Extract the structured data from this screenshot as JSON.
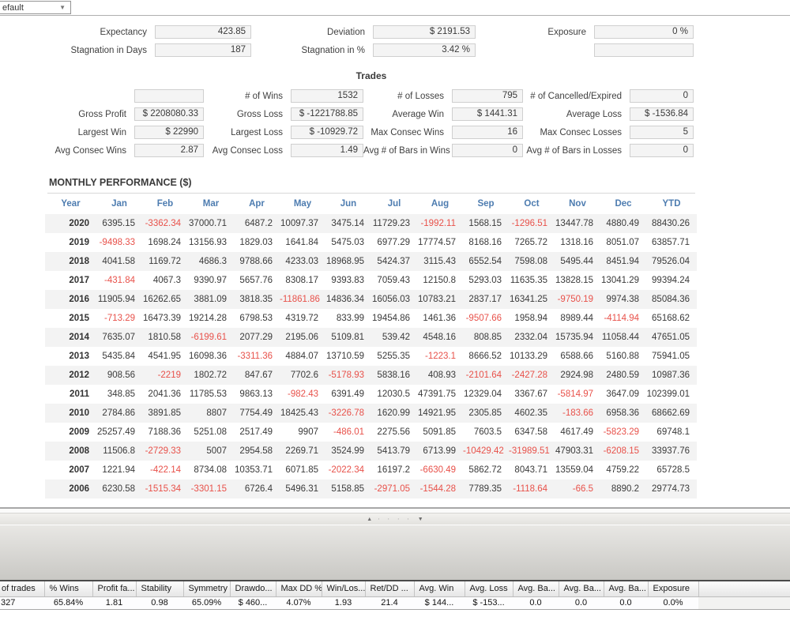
{
  "colors": {
    "accent_blue": "#4d7cb0",
    "negative_red": "#e8514a"
  },
  "toolbar": {
    "preset_value": "efault",
    "dropdown_icon": "▼"
  },
  "stats": {
    "rows": [
      [
        {
          "label": "Expectancy",
          "value": "423.85"
        },
        {
          "label": "Deviation",
          "value": "$ 2191.53"
        },
        {
          "label": "Exposure",
          "value": "0 %"
        }
      ],
      [
        {
          "label": "Stagnation in Days",
          "value": "187"
        },
        {
          "label": "Stagnation in %",
          "value": "3.42 %"
        },
        {
          "label": "",
          "value": ""
        }
      ]
    ]
  },
  "trades": {
    "title": "Trades",
    "rows": [
      [
        {
          "label": "",
          "value": ""
        },
        {
          "label": "# of Wins",
          "value": "1532"
        },
        {
          "label": "# of Losses",
          "value": "795"
        },
        {
          "label": "# of Cancelled/Expired",
          "value": "0"
        }
      ],
      [
        {
          "label": "Gross Profit",
          "value": "$ 2208080.33"
        },
        {
          "label": "Gross Loss",
          "value": "$ -1221788.85"
        },
        {
          "label": "Average Win",
          "value": "$ 1441.31"
        },
        {
          "label": "Average Loss",
          "value": "$ -1536.84"
        }
      ],
      [
        {
          "label": "Largest Win",
          "value": "$ 22990"
        },
        {
          "label": "Largest Loss",
          "value": "$ -10929.72"
        },
        {
          "label": "Max Consec Wins",
          "value": "16"
        },
        {
          "label": "Max Consec Losses",
          "value": "5"
        }
      ],
      [
        {
          "label": "Avg Consec Wins",
          "value": "2.87"
        },
        {
          "label": "Avg Consec Loss",
          "value": "1.49"
        },
        {
          "label": "Avg # of Bars in Wins",
          "value": "0"
        },
        {
          "label": "Avg # of Bars in Losses",
          "value": "0"
        }
      ]
    ]
  },
  "monthly": {
    "title": "MONTHLY PERFORMANCE ($)",
    "columns": [
      "Year",
      "Jan",
      "Feb",
      "Mar",
      "Apr",
      "May",
      "Jun",
      "Jul",
      "Aug",
      "Sep",
      "Oct",
      "Nov",
      "Dec",
      "YTD"
    ],
    "rows": [
      {
        "year": "2020",
        "values": [
          "6395.15",
          "-3362.34",
          "37000.71",
          "6487.2",
          "10097.37",
          "3475.14",
          "11729.23",
          "-1992.11",
          "1568.15",
          "-1296.51",
          "13447.78",
          "4880.49",
          "88430.26"
        ]
      },
      {
        "year": "2019",
        "values": [
          "-9498.33",
          "1698.24",
          "13156.93",
          "1829.03",
          "1641.84",
          "5475.03",
          "6977.29",
          "17774.57",
          "8168.16",
          "7265.72",
          "1318.16",
          "8051.07",
          "63857.71"
        ]
      },
      {
        "year": "2018",
        "values": [
          "4041.58",
          "1169.72",
          "4686.3",
          "9788.66",
          "4233.03",
          "18968.95",
          "5424.37",
          "3115.43",
          "6552.54",
          "7598.08",
          "5495.44",
          "8451.94",
          "79526.04"
        ]
      },
      {
        "year": "2017",
        "values": [
          "-431.84",
          "4067.3",
          "9390.97",
          "5657.76",
          "8308.17",
          "9393.83",
          "7059.43",
          "12150.8",
          "5293.03",
          "11635.35",
          "13828.15",
          "13041.29",
          "99394.24"
        ]
      },
      {
        "year": "2016",
        "values": [
          "11905.94",
          "16262.65",
          "3881.09",
          "3818.35",
          "-11861.86",
          "14836.34",
          "16056.03",
          "10783.21",
          "2837.17",
          "16341.25",
          "-9750.19",
          "9974.38",
          "85084.36"
        ]
      },
      {
        "year": "2015",
        "values": [
          "-713.29",
          "16473.39",
          "19214.28",
          "6798.53",
          "4319.72",
          "833.99",
          "19454.86",
          "1461.36",
          "-9507.66",
          "1958.94",
          "8989.44",
          "-4114.94",
          "65168.62"
        ]
      },
      {
        "year": "2014",
        "values": [
          "7635.07",
          "1810.58",
          "-6199.61",
          "2077.29",
          "2195.06",
          "5109.81",
          "539.42",
          "4548.16",
          "808.85",
          "2332.04",
          "15735.94",
          "11058.44",
          "47651.05"
        ]
      },
      {
        "year": "2013",
        "values": [
          "5435.84",
          "4541.95",
          "16098.36",
          "-3311.36",
          "4884.07",
          "13710.59",
          "5255.35",
          "-1223.1",
          "8666.52",
          "10133.29",
          "6588.66",
          "5160.88",
          "75941.05"
        ]
      },
      {
        "year": "2012",
        "values": [
          "908.56",
          "-2219",
          "1802.72",
          "847.67",
          "7702.6",
          "-5178.93",
          "5838.16",
          "408.93",
          "-2101.64",
          "-2427.28",
          "2924.98",
          "2480.59",
          "10987.36"
        ]
      },
      {
        "year": "2011",
        "values": [
          "348.85",
          "2041.36",
          "11785.53",
          "9863.13",
          "-982.43",
          "6391.49",
          "12030.5",
          "47391.75",
          "12329.04",
          "3367.67",
          "-5814.97",
          "3647.09",
          "102399.01"
        ]
      },
      {
        "year": "2010",
        "values": [
          "2784.86",
          "3891.85",
          "8807",
          "7754.49",
          "18425.43",
          "-3226.78",
          "1620.99",
          "14921.95",
          "2305.85",
          "4602.35",
          "-183.66",
          "6958.36",
          "68662.69"
        ]
      },
      {
        "year": "2009",
        "values": [
          "25257.49",
          "7188.36",
          "5251.08",
          "2517.49",
          "9907",
          "-486.01",
          "2275.56",
          "5091.85",
          "7603.5",
          "6347.58",
          "4617.49",
          "-5823.29",
          "69748.1"
        ]
      },
      {
        "year": "2008",
        "values": [
          "11506.8",
          "-2729.33",
          "5007",
          "2954.58",
          "2269.71",
          "3524.99",
          "5413.79",
          "6713.99",
          "-10429.42",
          "-31989.51",
          "47903.31",
          "-6208.15",
          "33937.76"
        ]
      },
      {
        "year": "2007",
        "values": [
          "1221.94",
          "-422.14",
          "8734.08",
          "10353.71",
          "6071.85",
          "-2022.34",
          "16197.2",
          "-6630.49",
          "5862.72",
          "8043.71",
          "13559.04",
          "4759.22",
          "65728.5"
        ]
      },
      {
        "year": "2006",
        "values": [
          "6230.58",
          "-1515.34",
          "-3301.15",
          "6726.4",
          "5496.31",
          "5158.85",
          "-2971.05",
          "-1544.28",
          "7789.35",
          "-1118.64",
          "-66.5",
          "8890.2",
          "29774.73"
        ]
      }
    ]
  },
  "splitter": {
    "up_icon": "▲",
    "dots": "∙ ∙ ∙ ∙",
    "down_icon": "▼"
  },
  "results": {
    "columns": [
      "of trades",
      "% Wins",
      "Profit fa...",
      "Stability",
      "Symmetry",
      "Drawdo...",
      "Max DD %",
      "Win/Los...",
      "Ret/DD ...",
      "Avg. Win",
      "Avg. Loss",
      "Avg. Ba...",
      "Avg. Ba...",
      "Avg. Ba...",
      "Exposure"
    ],
    "row": [
      "327",
      "65.84%",
      "1.81",
      "0.98",
      "65.09%",
      "$ 460...",
      "4.07%",
      "1.93",
      "21.4",
      "$ 144...",
      "$ -153...",
      "0.0",
      "0.0",
      "0.0",
      "0.0%"
    ]
  }
}
